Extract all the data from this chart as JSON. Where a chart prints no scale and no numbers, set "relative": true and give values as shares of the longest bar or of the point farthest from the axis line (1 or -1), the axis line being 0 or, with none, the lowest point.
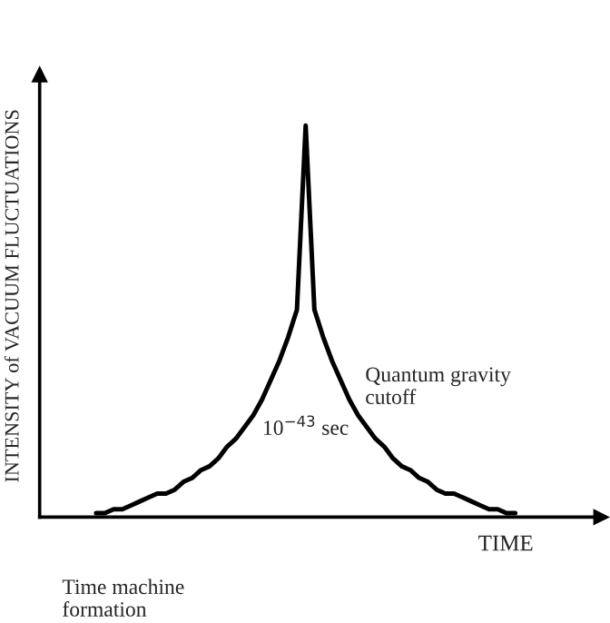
{
  "chart_data": {
    "type": "line",
    "relative": true,
    "xlabel": "TIME",
    "ylabel": "INTENSITY of VACUUM FLUCTUATIONS",
    "categories": [
      null,
      null,
      null,
      null,
      null,
      null,
      null,
      null,
      null,
      null,
      null,
      null,
      null,
      null,
      null,
      null,
      null,
      null,
      null,
      null,
      null,
      null,
      null,
      null,
      null,
      null,
      null,
      null,
      null,
      null,
      null,
      null,
      null,
      null,
      null,
      null,
      null,
      null,
      null,
      null,
      null,
      null,
      null,
      null,
      null,
      null,
      null,
      null,
      null
    ],
    "series": [
      {
        "color": "#000000",
        "values": [
          0.01,
          0.01,
          0.02,
          0.02,
          0.03,
          0.04,
          0.05,
          0.06,
          0.06,
          0.07,
          0.09,
          0.1,
          0.12,
          0.13,
          0.15,
          0.18,
          0.2,
          0.23,
          0.26,
          0.3,
          0.35,
          0.4,
          0.46,
          0.53,
          1.0,
          0.53,
          0.46,
          0.4,
          0.35,
          0.3,
          0.26,
          0.23,
          0.2,
          0.18,
          0.15,
          0.13,
          0.12,
          0.1,
          0.09,
          0.07,
          0.06,
          0.06,
          0.05,
          0.04,
          0.03,
          0.02,
          0.02,
          0.01,
          0.01
        ]
      }
    ],
    "annotations": [
      "Quantum gravity\ncutoff",
      "10$^{−43}$ sec",
      "Time machine\nformation"
    ]
  }
}
